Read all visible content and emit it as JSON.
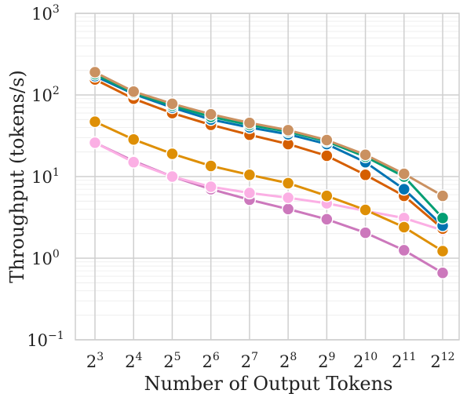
{
  "chart_data": {
    "type": "line",
    "title": "",
    "xlabel": "Number of Output Tokens",
    "ylabel": "Throughput (tokens/s)",
    "x_scale": "log2",
    "y_scale": "log10",
    "ylim": [
      0.1,
      1000
    ],
    "grid": true,
    "legend": "none",
    "x": [
      8,
      16,
      32,
      64,
      128,
      256,
      512,
      1024,
      2048,
      4096
    ],
    "x_tick_labels": [
      {
        "base": "2",
        "exp": "3"
      },
      {
        "base": "2",
        "exp": "4"
      },
      {
        "base": "2",
        "exp": "5"
      },
      {
        "base": "2",
        "exp": "6"
      },
      {
        "base": "2",
        "exp": "7"
      },
      {
        "base": "2",
        "exp": "8"
      },
      {
        "base": "2",
        "exp": "9"
      },
      {
        "base": "2",
        "exp": "10"
      },
      {
        "base": "2",
        "exp": "11"
      },
      {
        "base": "2",
        "exp": "12"
      }
    ],
    "y_ticks": [
      0.1,
      1,
      10,
      100,
      1000
    ],
    "y_tick_labels": [
      {
        "base": "10",
        "exp": "−1"
      },
      {
        "base": "10",
        "exp": "0"
      },
      {
        "base": "10",
        "exp": "1"
      },
      {
        "base": "10",
        "exp": "2"
      },
      {
        "base": "10",
        "exp": "3"
      }
    ],
    "series": [
      {
        "color": "#cc78bc",
        "values": [
          26,
          15.5,
          10,
          7,
          5.2,
          4,
          3,
          2.05,
          1.25,
          0.66
        ]
      },
      {
        "color": "#fbafe4",
        "values": [
          26,
          15,
          10,
          7.5,
          6.3,
          5.5,
          4.7,
          3.8,
          3.1,
          2.2
        ]
      },
      {
        "color": "#de8f05",
        "values": [
          47,
          28.5,
          19,
          13.5,
          10.5,
          8.3,
          5.8,
          3.9,
          2.4,
          1.22
        ]
      },
      {
        "color": "#d55e00",
        "values": [
          155,
          90,
          60,
          43,
          32.5,
          25,
          18,
          10.5,
          5.8,
          2.3
        ]
      },
      {
        "color": "#0173b2",
        "values": [
          170,
          103,
          70,
          50,
          40,
          33,
          25,
          15,
          7,
          2.5
        ]
      },
      {
        "color": "#029e73",
        "values": [
          180,
          106,
          74,
          54,
          43,
          35.5,
          27,
          17.5,
          10,
          3.1
        ]
      },
      {
        "color": "#ca9161",
        "values": [
          190,
          110,
          78,
          58,
          45.5,
          37,
          28,
          18.5,
          10.8,
          5.8
        ]
      }
    ]
  }
}
